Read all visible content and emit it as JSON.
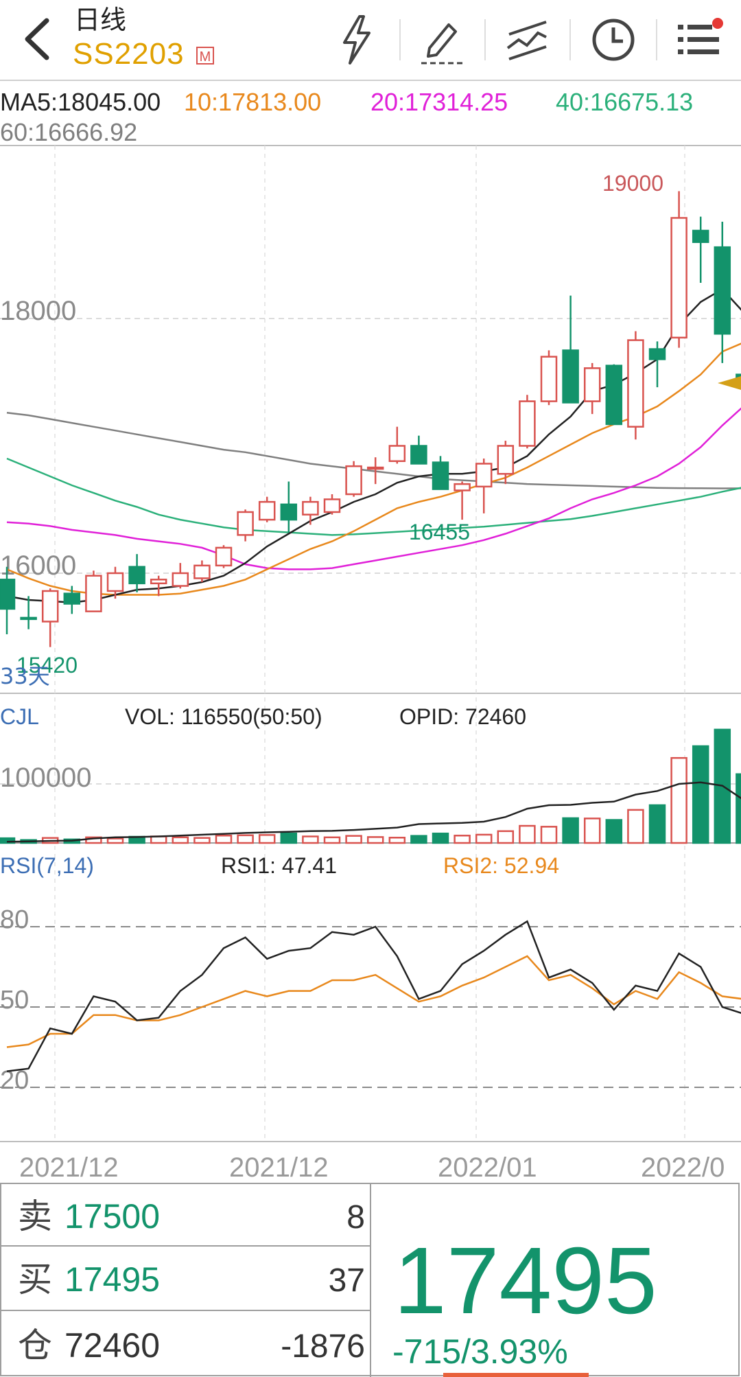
{
  "header": {
    "title": "日线",
    "symbol": "SS2203",
    "badge": "M",
    "icons": [
      "back-icon",
      "lightning-icon",
      "draw-icon",
      "compare-icon",
      "clock-icon",
      "menu-icon"
    ]
  },
  "ma_legend": {
    "ma5": "MA5:18045.00",
    "ma10": "10:17813.00",
    "ma20": "20:17314.25",
    "ma40": "40:16675.13",
    "ma60": "60:16666.92"
  },
  "colors": {
    "up": "#d9534f",
    "down": "#13936b",
    "ma5": "#222222",
    "ma10": "#e8881c",
    "ma20": "#e020d8",
    "ma40": "#2bb07a",
    "ma60": "#7f7f7f",
    "accent": "#e0a000"
  },
  "chart_data": [
    {
      "type": "candlestick",
      "title": "",
      "ylim": [
        15100,
        19600
      ],
      "y_ticks": [
        "18000",
        "16000"
      ],
      "annotations": {
        "max_label": "19000",
        "min_label": "15420",
        "mid_low_label": "16455",
        "days_label": "33天"
      },
      "candles": [
        {
          "o": 15950,
          "h": 16050,
          "l": 15520,
          "c": 15720
        },
        {
          "o": 15650,
          "h": 15820,
          "l": 15560,
          "c": 15640
        },
        {
          "o": 15620,
          "h": 15880,
          "l": 15420,
          "c": 15860
        },
        {
          "o": 15840,
          "h": 15900,
          "l": 15680,
          "c": 15760
        },
        {
          "o": 15700,
          "h": 16020,
          "l": 15700,
          "c": 15980
        },
        {
          "o": 15860,
          "h": 16050,
          "l": 15800,
          "c": 16000
        },
        {
          "o": 16050,
          "h": 16150,
          "l": 15850,
          "c": 15920
        },
        {
          "o": 15920,
          "h": 15980,
          "l": 15820,
          "c": 15950
        },
        {
          "o": 15900,
          "h": 16080,
          "l": 15880,
          "c": 16000
        },
        {
          "o": 15960,
          "h": 16100,
          "l": 15930,
          "c": 16060
        },
        {
          "o": 16060,
          "h": 16220,
          "l": 16040,
          "c": 16200
        },
        {
          "o": 16300,
          "h": 16500,
          "l": 16250,
          "c": 16480
        },
        {
          "o": 16420,
          "h": 16600,
          "l": 16400,
          "c": 16560
        },
        {
          "o": 16540,
          "h": 16720,
          "l": 16320,
          "c": 16420
        },
        {
          "o": 16460,
          "h": 16600,
          "l": 16380,
          "c": 16560
        },
        {
          "o": 16480,
          "h": 16620,
          "l": 16460,
          "c": 16580
        },
        {
          "o": 16620,
          "h": 16880,
          "l": 16600,
          "c": 16840
        },
        {
          "o": 16820,
          "h": 16910,
          "l": 16700,
          "c": 16830
        },
        {
          "o": 16880,
          "h": 17150,
          "l": 16860,
          "c": 17000
        },
        {
          "o": 17000,
          "h": 17080,
          "l": 16860,
          "c": 16860
        },
        {
          "o": 16870,
          "h": 16920,
          "l": 16660,
          "c": 16660
        },
        {
          "o": 16650,
          "h": 16720,
          "l": 16420,
          "c": 16700
        },
        {
          "o": 16680,
          "h": 16900,
          "l": 16470,
          "c": 16860
        },
        {
          "o": 16780,
          "h": 17040,
          "l": 16700,
          "c": 17000
        },
        {
          "o": 17000,
          "h": 17400,
          "l": 16980,
          "c": 17350
        },
        {
          "o": 17350,
          "h": 17750,
          "l": 17320,
          "c": 17700
        },
        {
          "o": 17750,
          "h": 18180,
          "l": 17380,
          "c": 17340
        },
        {
          "o": 17350,
          "h": 17650,
          "l": 17250,
          "c": 17610
        },
        {
          "o": 17630,
          "h": 17640,
          "l": 17170,
          "c": 17170
        },
        {
          "o": 17150,
          "h": 17900,
          "l": 17050,
          "c": 17830
        },
        {
          "o": 17760,
          "h": 17820,
          "l": 17460,
          "c": 17680
        },
        {
          "o": 17850,
          "h": 19000,
          "l": 17770,
          "c": 18790
        },
        {
          "o": 18690,
          "h": 18800,
          "l": 18280,
          "c": 18600
        },
        {
          "o": 18560,
          "h": 18760,
          "l": 17650,
          "c": 17880
        },
        {
          "o": 17560,
          "h": 17660,
          "l": 17370,
          "c": 17495
        }
      ],
      "ma_series": {
        "ma5": [
          15820,
          15790,
          15780,
          15770,
          15790,
          15830,
          15870,
          15880,
          15900,
          15930,
          15980,
          16080,
          16210,
          16310,
          16410,
          16480,
          16560,
          16620,
          16710,
          16760,
          16780,
          16780,
          16800,
          16830,
          16920,
          17090,
          17230,
          17430,
          17480,
          17570,
          17680,
          17950,
          18130,
          18230,
          18045
        ],
        "ma10": [
          16030,
          15960,
          15900,
          15860,
          15840,
          15830,
          15830,
          15830,
          15840,
          15870,
          15900,
          15950,
          16030,
          16110,
          16190,
          16250,
          16330,
          16420,
          16510,
          16560,
          16600,
          16650,
          16700,
          16750,
          16830,
          16920,
          17010,
          17100,
          17170,
          17230,
          17310,
          17430,
          17560,
          17740,
          17813
        ],
        "ma20": [
          16400,
          16390,
          16370,
          16340,
          16320,
          16300,
          16270,
          16250,
          16230,
          16200,
          16140,
          16070,
          16040,
          16030,
          16030,
          16040,
          16070,
          16100,
          16130,
          16160,
          16190,
          16220,
          16260,
          16310,
          16370,
          16430,
          16510,
          16580,
          16630,
          16690,
          16760,
          16860,
          16990,
          17160,
          17314.25
        ],
        "ma40": [
          16900,
          16830,
          16760,
          16690,
          16630,
          16570,
          16520,
          16460,
          16420,
          16390,
          16360,
          16340,
          16330,
          16320,
          16310,
          16300,
          16305,
          16315,
          16325,
          16335,
          16345,
          16355,
          16365,
          16380,
          16395,
          16410,
          16425,
          16450,
          16480,
          16510,
          16540,
          16570,
          16600,
          16640,
          16675.13
        ],
        "ma60": [
          17260,
          17240,
          17210,
          17180,
          17150,
          17120,
          17090,
          17060,
          17030,
          17000,
          16970,
          16950,
          16920,
          16890,
          16860,
          16840,
          16820,
          16800,
          16780,
          16760,
          16740,
          16730,
          16720,
          16710,
          16700,
          16695,
          16690,
          16685,
          16680,
          16675,
          16670,
          16668,
          16667,
          16666,
          16666.92
        ]
      }
    },
    {
      "type": "bar",
      "name": "CJL",
      "vol_label": "VOL: 116550(50:50)",
      "opid_label": "OPID: 72460",
      "ylim": [
        0,
        205000
      ],
      "y_ticks": [
        "100000"
      ],
      "values": [
        8000,
        5000,
        8500,
        6000,
        9500,
        7500,
        10500,
        11000,
        9500,
        8500,
        12500,
        13000,
        13500,
        16000,
        11000,
        9500,
        12000,
        10000,
        9000,
        12000,
        16000,
        12500,
        14000,
        20000,
        29000,
        27500,
        42000,
        41500,
        39000,
        56000,
        64000,
        144000,
        164000,
        192000,
        116550
      ],
      "opid": [
        2000,
        2500,
        3500,
        4000,
        7500,
        9500,
        10000,
        11000,
        12500,
        14000,
        15500,
        17000,
        18000,
        19000,
        20000,
        20500,
        22000,
        24000,
        26000,
        32000,
        33000,
        34000,
        36000,
        44000,
        58000,
        64000,
        64500,
        68000,
        70000,
        82000,
        88000,
        100000,
        102500,
        97000,
        72460
      ]
    },
    {
      "type": "line",
      "name": "RSI(7,14)",
      "rsi1_label": "RSI1: 47.41",
      "rsi2_label": "RSI2: 52.94",
      "ylim": [
        0,
        100
      ],
      "y_ticks": [
        "80",
        "50",
        "20"
      ],
      "rsi1": [
        26,
        27,
        42,
        40,
        54,
        52,
        45,
        46,
        56,
        62,
        72,
        76,
        68,
        71,
        72,
        78,
        77,
        80,
        69,
        53,
        56,
        66,
        71,
        77,
        82,
        61,
        64,
        59,
        49,
        58,
        56,
        70,
        65,
        50,
        47.41
      ],
      "rsi2": [
        35,
        36,
        40,
        40,
        47,
        47,
        45,
        45,
        47,
        50,
        53,
        56,
        54,
        56,
        56,
        60,
        60,
        62,
        57,
        52,
        54,
        58,
        61,
        65,
        69,
        60,
        62,
        57,
        51,
        56,
        53,
        63,
        59,
        54,
        52.94
      ]
    }
  ],
  "x_axis": [
    "2021/12",
    "2021/12",
    "2022/01",
    "2022/0"
  ],
  "quote": {
    "sell_label": "卖",
    "sell_price": "17500",
    "sell_qty": "8",
    "buy_label": "买",
    "buy_price": "17495",
    "buy_qty": "37",
    "oi_label": "仓",
    "oi_value": "72460",
    "oi_change": "-1876",
    "last_price": "17495",
    "change": "-715/3.93%"
  }
}
